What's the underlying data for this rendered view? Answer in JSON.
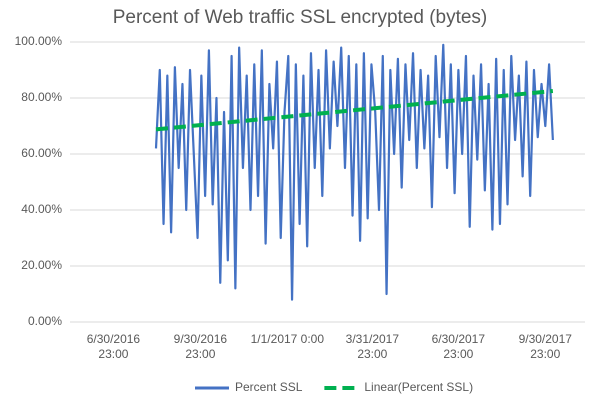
{
  "chart_data": {
    "type": "line",
    "title": "Percent of Web traffic SSL encrypted (bytes)",
    "ylim": [
      0,
      100
    ],
    "yticks": [
      {
        "value": 0,
        "label": "0.00%"
      },
      {
        "value": 20,
        "label": "20.00%"
      },
      {
        "value": 40,
        "label": "40.00%"
      },
      {
        "value": 60,
        "label": "60.00%"
      },
      {
        "value": 80,
        "label": "80.00%"
      },
      {
        "value": 100,
        "label": "100.00%"
      }
    ],
    "xlim": [
      "2016-05-16T00:00",
      "2017-11-12T00:00"
    ],
    "xticks": [
      {
        "value": "2016-06-30T23:00",
        "label": "6/30/2016 23:00"
      },
      {
        "value": "2016-09-30T23:00",
        "label": "9/30/2016 23:00"
      },
      {
        "value": "2017-01-01T00:00",
        "label": "1/1/2017 0:00"
      },
      {
        "value": "2017-03-31T23:00",
        "label": "3/31/2017 23:00"
      },
      {
        "value": "2017-06-30T23:00",
        "label": "6/30/2017 23:00"
      },
      {
        "value": "2017-09-30T23:00",
        "label": "9/30/2017 23:00"
      }
    ],
    "grid": true,
    "legend": "bottom",
    "series": [
      {
        "name": "Percent SSL",
        "color": "#4472c4",
        "x": [
          "2016-08-15",
          "2016-08-19",
          "2016-08-23",
          "2016-08-27",
          "2016-08-31",
          "2016-09-04",
          "2016-09-08",
          "2016-09-12",
          "2016-09-16",
          "2016-09-20",
          "2016-09-24",
          "2016-09-28",
          "2016-10-02",
          "2016-10-06",
          "2016-10-10",
          "2016-10-14",
          "2016-10-18",
          "2016-10-22",
          "2016-10-26",
          "2016-10-30",
          "2016-11-03",
          "2016-11-07",
          "2016-11-11",
          "2016-11-15",
          "2016-11-19",
          "2016-11-23",
          "2016-11-27",
          "2016-12-01",
          "2016-12-05",
          "2016-12-09",
          "2016-12-13",
          "2016-12-17",
          "2016-12-21",
          "2016-12-25",
          "2016-12-29",
          "2017-01-02",
          "2017-01-06",
          "2017-01-10",
          "2017-01-14",
          "2017-01-18",
          "2017-01-22",
          "2017-01-26",
          "2017-01-30",
          "2017-02-03",
          "2017-02-07",
          "2017-02-11",
          "2017-02-15",
          "2017-02-19",
          "2017-02-23",
          "2017-02-27",
          "2017-03-03",
          "2017-03-07",
          "2017-03-11",
          "2017-03-15",
          "2017-03-19",
          "2017-03-23",
          "2017-03-27",
          "2017-03-31",
          "2017-04-04",
          "2017-04-08",
          "2017-04-12",
          "2017-04-16",
          "2017-04-20",
          "2017-04-24",
          "2017-04-28",
          "2017-05-02",
          "2017-05-06",
          "2017-05-10",
          "2017-05-14",
          "2017-05-18",
          "2017-05-22",
          "2017-05-26",
          "2017-05-30",
          "2017-06-03",
          "2017-06-07",
          "2017-06-11",
          "2017-06-15",
          "2017-06-19",
          "2017-06-23",
          "2017-06-27",
          "2017-07-01",
          "2017-07-05",
          "2017-07-09",
          "2017-07-13",
          "2017-07-17",
          "2017-07-21",
          "2017-07-25",
          "2017-07-29",
          "2017-08-02",
          "2017-08-06",
          "2017-08-10",
          "2017-08-14",
          "2017-08-18",
          "2017-08-22",
          "2017-08-26",
          "2017-08-30",
          "2017-09-03",
          "2017-09-07",
          "2017-09-11",
          "2017-09-15",
          "2017-09-19",
          "2017-09-23",
          "2017-09-27",
          "2017-10-01",
          "2017-10-05",
          "2017-10-09"
        ],
        "values": [
          62,
          90,
          35,
          88,
          32,
          91,
          55,
          85,
          40,
          90,
          60,
          30,
          88,
          45,
          97,
          42,
          80,
          14,
          75,
          22,
          95,
          12,
          98,
          55,
          88,
          40,
          92,
          45,
          97,
          28,
          85,
          62,
          93,
          30,
          75,
          95,
          8,
          92,
          35,
          88,
          27,
          96,
          55,
          90,
          45,
          97,
          62,
          93,
          70,
          98,
          55,
          95,
          38,
          92,
          29,
          96,
          37,
          92,
          75,
          40,
          95,
          10,
          90,
          60,
          94,
          48,
          92,
          65,
          96,
          55,
          90,
          62,
          88,
          41,
          95,
          66,
          99,
          55,
          92,
          46,
          90,
          60,
          95,
          34,
          88,
          58,
          92,
          47,
          85,
          33,
          94,
          35,
          90,
          42,
          95,
          65,
          88,
          52,
          93,
          45,
          90,
          66,
          85,
          70,
          92,
          65
        ]
      },
      {
        "name": "Linear(Percent SSL)",
        "color": "#00b050",
        "dashed": true,
        "x": [
          "2016-08-15",
          "2017-10-09"
        ],
        "values": [
          68.8,
          82.5
        ]
      }
    ]
  }
}
